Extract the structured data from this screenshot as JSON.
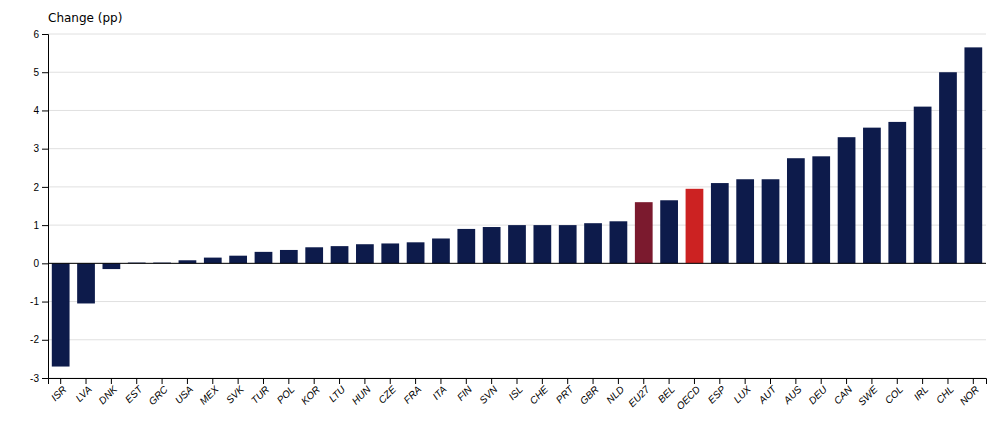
{
  "chart_data": {
    "type": "bar",
    "ylabel": "Change (pp)",
    "categories": [
      "ISR",
      "LVA",
      "DNK",
      "EST",
      "GRC",
      "USA",
      "MEX",
      "SVK",
      "TUR",
      "POL",
      "KOR",
      "LTU",
      "HUN",
      "CZE",
      "FRA",
      "ITA",
      "FIN",
      "SVN",
      "ISL",
      "CHE",
      "PRT",
      "GBR",
      "NLD",
      "EU27",
      "BEL",
      "OECD",
      "ESP",
      "LUX",
      "AUT",
      "AUS",
      "DEU",
      "CAN",
      "SWE",
      "COL",
      "IRL",
      "CHL",
      "NOR"
    ],
    "values": [
      -2.7,
      -1.05,
      -0.15,
      0.02,
      0.02,
      0.08,
      0.15,
      0.2,
      0.3,
      0.35,
      0.42,
      0.45,
      0.5,
      0.52,
      0.55,
      0.65,
      0.9,
      0.95,
      1.0,
      1.0,
      1.0,
      1.05,
      1.1,
      1.6,
      1.65,
      1.95,
      2.1,
      2.2,
      2.2,
      2.75,
      2.8,
      3.3,
      3.55,
      3.7,
      4.1,
      5.0,
      5.65
    ],
    "colors": [
      "#0d1b4b",
      "#0d1b4b",
      "#0d1b4b",
      "#0d1b4b",
      "#0d1b4b",
      "#0d1b4b",
      "#0d1b4b",
      "#0d1b4b",
      "#0d1b4b",
      "#0d1b4b",
      "#0d1b4b",
      "#0d1b4b",
      "#0d1b4b",
      "#0d1b4b",
      "#0d1b4b",
      "#0d1b4b",
      "#0d1b4b",
      "#0d1b4b",
      "#0d1b4b",
      "#0d1b4b",
      "#0d1b4b",
      "#0d1b4b",
      "#0d1b4b",
      "#7b1a2e",
      "#0d1b4b",
      "#cc2222",
      "#0d1b4b",
      "#0d1b4b",
      "#0d1b4b",
      "#0d1b4b",
      "#0d1b4b",
      "#0d1b4b",
      "#0d1b4b",
      "#0d1b4b",
      "#0d1b4b",
      "#0d1b4b",
      "#0d1b4b"
    ],
    "ylim": [
      -3,
      6
    ],
    "yticks": [
      -3,
      -2,
      -1,
      0,
      1,
      2,
      3,
      4,
      5,
      6
    ],
    "grid": true
  }
}
